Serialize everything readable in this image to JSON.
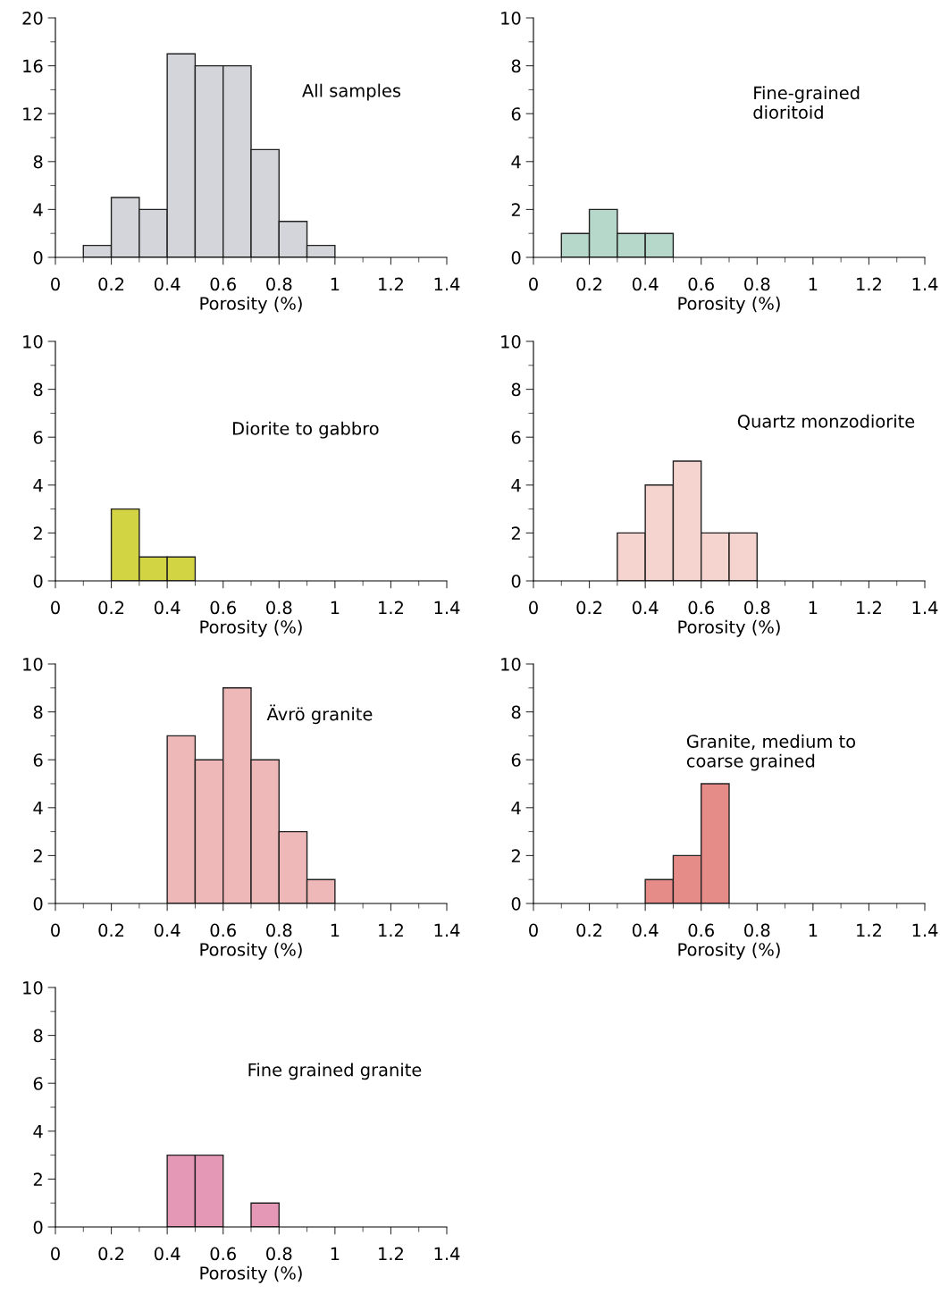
{
  "chart_data": [
    {
      "type": "histogram",
      "title": "All samples",
      "xlabel": "Porosity (%)",
      "bins": [
        0.1,
        0.2,
        0.3,
        0.4,
        0.5,
        0.6,
        0.7,
        0.8,
        0.9,
        1.0
      ],
      "values": [
        1,
        5,
        4,
        17,
        16,
        16,
        9,
        3,
        1
      ],
      "color": "#d4d5da",
      "xlim": [
        0,
        1.4
      ],
      "xticks": [
        0,
        0.2,
        0.4,
        0.6,
        0.8,
        1,
        1.2,
        1.4
      ],
      "ylim": [
        0,
        20
      ],
      "yticks": [
        0,
        4,
        8,
        12,
        16,
        20
      ],
      "grid": false
    },
    {
      "type": "histogram",
      "title": "Fine-grained\ndioritoid",
      "xlabel": "Porosity (%)",
      "bins": [
        0.1,
        0.2,
        0.3,
        0.4,
        0.5
      ],
      "values": [
        1,
        2,
        1,
        1
      ],
      "color": "#b5d8cb",
      "xlim": [
        0,
        1.4
      ],
      "xticks": [
        0,
        0.2,
        0.4,
        0.6,
        0.8,
        1,
        1.2,
        1.4
      ],
      "ylim": [
        0,
        10
      ],
      "yticks": [
        0,
        2,
        4,
        6,
        8,
        10
      ],
      "grid": false
    },
    {
      "type": "histogram",
      "title": "Diorite to gabbro",
      "xlabel": "Porosity (%)",
      "bins": [
        0.2,
        0.3,
        0.4,
        0.5
      ],
      "values": [
        3,
        1,
        1
      ],
      "color": "#d2d443",
      "xlim": [
        0,
        1.4
      ],
      "xticks": [
        0,
        0.2,
        0.4,
        0.6,
        0.8,
        1,
        1.2,
        1.4
      ],
      "ylim": [
        0,
        10
      ],
      "yticks": [
        0,
        2,
        4,
        6,
        8,
        10
      ],
      "grid": false
    },
    {
      "type": "histogram",
      "title": "Quartz monzodiorite",
      "xlabel": "Porosity (%)",
      "bins": [
        0.3,
        0.4,
        0.5,
        0.6,
        0.7,
        0.8
      ],
      "values": [
        2,
        4,
        5,
        2,
        2
      ],
      "color": "#f5d4d0",
      "xlim": [
        0,
        1.4
      ],
      "xticks": [
        0,
        0.2,
        0.4,
        0.6,
        0.8,
        1,
        1.2,
        1.4
      ],
      "ylim": [
        0,
        10
      ],
      "yticks": [
        0,
        2,
        4,
        6,
        8,
        10
      ],
      "grid": false
    },
    {
      "type": "histogram",
      "title": "Ävrö granite",
      "xlabel": "Porosity (%)",
      "bins": [
        0.4,
        0.5,
        0.6,
        0.7,
        0.8,
        0.9,
        1.0
      ],
      "values": [
        7,
        6,
        9,
        6,
        3,
        1
      ],
      "color": "#eeb8b8",
      "xlim": [
        0,
        1.4
      ],
      "xticks": [
        0,
        0.2,
        0.4,
        0.6,
        0.8,
        1,
        1.2,
        1.4
      ],
      "ylim": [
        0,
        10
      ],
      "yticks": [
        0,
        2,
        4,
        6,
        8,
        10
      ],
      "grid": false
    },
    {
      "type": "histogram",
      "title": "Granite, medium to\ncoarse grained",
      "xlabel": "Porosity (%)",
      "bins": [
        0.4,
        0.5,
        0.6,
        0.7
      ],
      "values": [
        1,
        2,
        5
      ],
      "color": "#e58b88",
      "xlim": [
        0,
        1.4
      ],
      "xticks": [
        0,
        0.2,
        0.4,
        0.6,
        0.8,
        1,
        1.2,
        1.4
      ],
      "ylim": [
        0,
        10
      ],
      "yticks": [
        0,
        2,
        4,
        6,
        8,
        10
      ],
      "grid": false
    },
    {
      "type": "histogram",
      "title": "Fine grained granite",
      "xlabel": "Porosity (%)",
      "bins": [
        0.4,
        0.5,
        0.6,
        0.7,
        0.8
      ],
      "values": [
        3,
        3,
        0,
        1
      ],
      "color": "#e597b6",
      "xlim": [
        0,
        1.4
      ],
      "xticks": [
        0,
        0.2,
        0.4,
        0.6,
        0.8,
        1,
        1.2,
        1.4
      ],
      "ylim": [
        0,
        10
      ],
      "yticks": [
        0,
        2,
        4,
        6,
        8,
        10
      ],
      "grid": false
    }
  ]
}
